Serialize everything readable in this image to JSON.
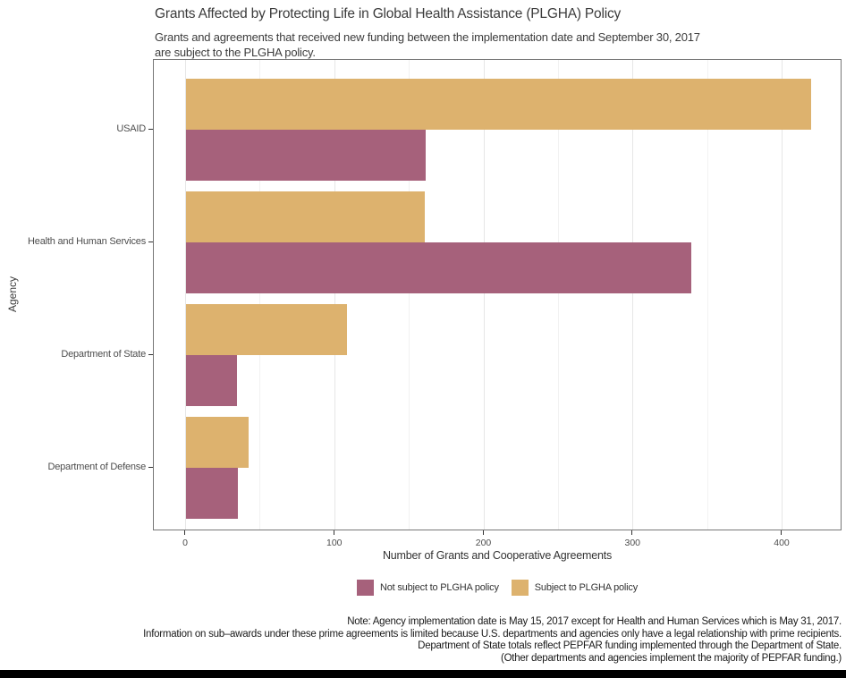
{
  "chart_data": {
    "type": "bar",
    "orientation": "horizontal",
    "title": "Grants Affected by Protecting Life in Global Health Assistance (PLGHA) Policy",
    "subtitle_lines": [
      "Grants and agreements that received new funding between the implementation date and September 30, 2017",
      "are subject to the PLGHA policy."
    ],
    "xlabel": "Number of Grants and Cooperative Agreements",
    "ylabel": "Agency",
    "categories": [
      "USAID",
      "Health and Human Services",
      "Department of State",
      "Department of Defense"
    ],
    "series": [
      {
        "name": "Subject to PLGHA policy",
        "color": "#DDB26E",
        "bar_position": "top",
        "values": [
          419,
          160,
          108,
          42
        ]
      },
      {
        "name": "Not subject to PLGHA policy",
        "color": "#A6617B",
        "bar_position": "bottom",
        "values": [
          161,
          339,
          34,
          35
        ]
      }
    ],
    "xticks": [
      0,
      100,
      200,
      300,
      400
    ],
    "minor_gridlines": [
      50,
      150,
      250,
      350
    ],
    "xlim": [
      0,
      440
    ],
    "grid": "on",
    "legend_position": "bottom",
    "legend_items": [
      {
        "label": "Not subject to PLGHA policy",
        "color": "#A6617B"
      },
      {
        "label": "Subject to PLGHA policy",
        "color": "#DDB26E"
      }
    ]
  },
  "notes": {
    "lines": [
      "Note: Agency implementation date is May 15, 2017 except for Health and Human Services which is May 31, 2017.",
      "Information on sub–awards under these prime agreements is limited because U.S. departments and agencies only have a legal relationship with prime recipients.",
      "Department of State totals reflect PEPFAR funding implemented through the Department of State.",
      "(Other departments and agencies implement the majority of PEPFAR funding.)"
    ]
  },
  "colors": {
    "bar_subject": "#DDB26E",
    "bar_not_subject": "#A6617B",
    "panel_border": "#777777",
    "grid_major": "#E6E6E6",
    "grid_minor": "#F2F2F2",
    "bottom_bar": "#000000"
  }
}
